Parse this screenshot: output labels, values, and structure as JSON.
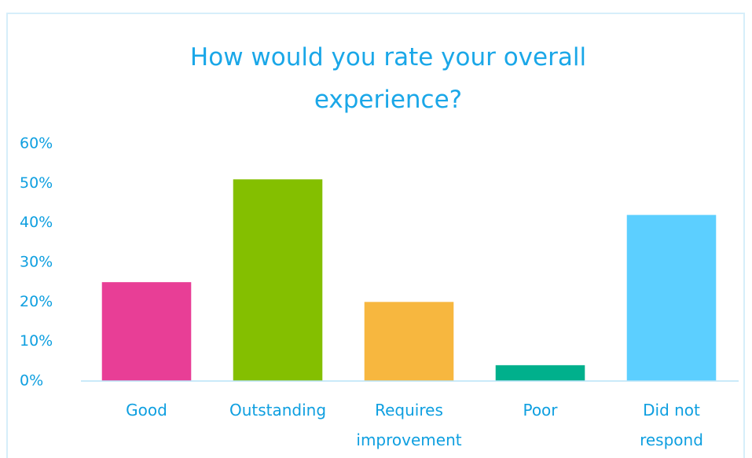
{
  "chart_data": {
    "type": "bar",
    "title": "How would you rate your overall experience?",
    "categories": [
      "Good",
      "Outstanding",
      "Requires improvement",
      "Poor",
      "Did not respond"
    ],
    "values": [
      25,
      51,
      20,
      4,
      42
    ],
    "colors": [
      "#e83e96",
      "#84bf00",
      "#f7b73f",
      "#00b08c",
      "#5ccfff"
    ],
    "ylim": [
      0,
      60
    ],
    "yticks": [
      {
        "value": 0,
        "label": "0%"
      },
      {
        "value": 10,
        "label": "10%"
      },
      {
        "value": 20,
        "label": "20%"
      },
      {
        "value": 30,
        "label": "30%"
      },
      {
        "value": 40,
        "label": "40%"
      },
      {
        "value": 50,
        "label": "50%"
      },
      {
        "value": 60,
        "label": "60%"
      }
    ],
    "grid": false
  }
}
